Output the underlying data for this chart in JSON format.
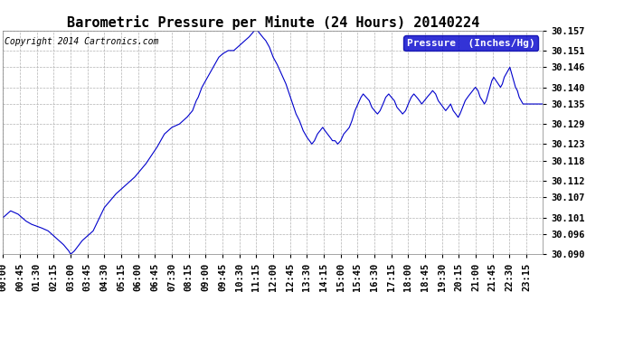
{
  "title": "Barometric Pressure per Minute (24 Hours) 20140224",
  "copyright_text": "Copyright 2014 Cartronics.com",
  "legend_label": "Pressure  (Inches/Hg)",
  "y_min": 30.09,
  "y_max": 30.157,
  "y_ticks": [
    30.09,
    30.096,
    30.101,
    30.107,
    30.112,
    30.118,
    30.123,
    30.129,
    30.135,
    30.14,
    30.146,
    30.151,
    30.157
  ],
  "line_color": "#0000cc",
  "background_color": "#ffffff",
  "grid_color": "#aaaaaa",
  "title_fontsize": 11,
  "tick_fontsize": 7.5,
  "copyright_fontsize": 7,
  "legend_fontsize": 8,
  "x_tick_labels": [
    "00:00",
    "00:45",
    "01:30",
    "02:15",
    "03:00",
    "03:45",
    "04:30",
    "05:15",
    "06:00",
    "06:45",
    "07:30",
    "08:15",
    "09:00",
    "09:45",
    "10:30",
    "11:15",
    "12:00",
    "12:45",
    "13:30",
    "14:15",
    "15:00",
    "15:45",
    "16:30",
    "17:15",
    "18:00",
    "18:45",
    "19:30",
    "20:15",
    "21:00",
    "21:45",
    "22:30",
    "23:15"
  ],
  "key_times_minutes": [
    0,
    45,
    90,
    135,
    180,
    225,
    270,
    315,
    360,
    405,
    450,
    495,
    540,
    585,
    630,
    675,
    720,
    765,
    810,
    855,
    900,
    945,
    990,
    1035,
    1080,
    1125,
    1170,
    1215,
    1260,
    1305,
    1350,
    1395
  ],
  "control_points": [
    [
      0,
      30.101
    ],
    [
      20,
      30.103
    ],
    [
      40,
      30.102
    ],
    [
      60,
      30.1
    ],
    [
      75,
      30.099
    ],
    [
      100,
      30.098
    ],
    [
      120,
      30.097
    ],
    [
      140,
      30.095
    ],
    [
      160,
      30.093
    ],
    [
      175,
      30.091
    ],
    [
      180,
      30.09
    ],
    [
      190,
      30.091
    ],
    [
      210,
      30.094
    ],
    [
      240,
      30.097
    ],
    [
      270,
      30.104
    ],
    [
      300,
      30.108
    ],
    [
      320,
      30.11
    ],
    [
      350,
      30.113
    ],
    [
      380,
      30.117
    ],
    [
      410,
      30.122
    ],
    [
      430,
      30.126
    ],
    [
      450,
      30.128
    ],
    [
      470,
      30.129
    ],
    [
      490,
      30.131
    ],
    [
      505,
      30.133
    ],
    [
      515,
      30.136
    ],
    [
      520,
      30.137
    ],
    [
      530,
      30.14
    ],
    [
      545,
      30.143
    ],
    [
      555,
      30.145
    ],
    [
      565,
      30.147
    ],
    [
      575,
      30.149
    ],
    [
      585,
      30.15
    ],
    [
      600,
      30.151
    ],
    [
      615,
      30.151
    ],
    [
      625,
      30.152
    ],
    [
      635,
      30.153
    ],
    [
      645,
      30.154
    ],
    [
      655,
      30.155
    ],
    [
      663,
      30.156
    ],
    [
      670,
      30.157
    ],
    [
      678,
      30.157
    ],
    [
      685,
      30.156
    ],
    [
      692,
      30.155
    ],
    [
      700,
      30.154
    ],
    [
      710,
      30.152
    ],
    [
      720,
      30.149
    ],
    [
      730,
      30.147
    ],
    [
      742,
      30.144
    ],
    [
      754,
      30.141
    ],
    [
      763,
      30.138
    ],
    [
      772,
      30.135
    ],
    [
      781,
      30.132
    ],
    [
      790,
      30.13
    ],
    [
      800,
      30.127
    ],
    [
      810,
      30.125
    ],
    [
      817,
      30.124
    ],
    [
      823,
      30.123
    ],
    [
      830,
      30.124
    ],
    [
      838,
      30.126
    ],
    [
      845,
      30.127
    ],
    [
      852,
      30.128
    ],
    [
      858,
      30.127
    ],
    [
      865,
      30.126
    ],
    [
      872,
      30.125
    ],
    [
      878,
      30.124
    ],
    [
      885,
      30.124
    ],
    [
      892,
      30.123
    ],
    [
      900,
      30.124
    ],
    [
      908,
      30.126
    ],
    [
      916,
      30.127
    ],
    [
      923,
      30.128
    ],
    [
      930,
      30.13
    ],
    [
      938,
      30.133
    ],
    [
      946,
      30.135
    ],
    [
      954,
      30.137
    ],
    [
      960,
      30.138
    ],
    [
      968,
      30.137
    ],
    [
      976,
      30.136
    ],
    [
      983,
      30.134
    ],
    [
      990,
      30.133
    ],
    [
      998,
      30.132
    ],
    [
      1005,
      30.133
    ],
    [
      1013,
      30.135
    ],
    [
      1020,
      30.137
    ],
    [
      1028,
      30.138
    ],
    [
      1035,
      30.137
    ],
    [
      1043,
      30.136
    ],
    [
      1050,
      30.134
    ],
    [
      1058,
      30.133
    ],
    [
      1065,
      30.132
    ],
    [
      1073,
      30.133
    ],
    [
      1080,
      30.135
    ],
    [
      1088,
      30.137
    ],
    [
      1095,
      30.138
    ],
    [
      1103,
      30.137
    ],
    [
      1110,
      30.136
    ],
    [
      1116,
      30.135
    ],
    [
      1123,
      30.136
    ],
    [
      1130,
      30.137
    ],
    [
      1138,
      30.138
    ],
    [
      1145,
      30.139
    ],
    [
      1153,
      30.138
    ],
    [
      1160,
      30.136
    ],
    [
      1167,
      30.135
    ],
    [
      1173,
      30.134
    ],
    [
      1180,
      30.133
    ],
    [
      1187,
      30.134
    ],
    [
      1193,
      30.135
    ],
    [
      1200,
      30.133
    ],
    [
      1207,
      30.132
    ],
    [
      1213,
      30.131
    ],
    [
      1218,
      30.132
    ],
    [
      1225,
      30.134
    ],
    [
      1232,
      30.136
    ],
    [
      1238,
      30.137
    ],
    [
      1245,
      30.138
    ],
    [
      1252,
      30.139
    ],
    [
      1259,
      30.14
    ],
    [
      1266,
      30.139
    ],
    [
      1272,
      30.137
    ],
    [
      1278,
      30.136
    ],
    [
      1283,
      30.135
    ],
    [
      1288,
      30.136
    ],
    [
      1293,
      30.138
    ],
    [
      1298,
      30.14
    ],
    [
      1303,
      30.142
    ],
    [
      1308,
      30.143
    ],
    [
      1314,
      30.142
    ],
    [
      1320,
      30.141
    ],
    [
      1326,
      30.14
    ],
    [
      1331,
      30.141
    ],
    [
      1336,
      30.143
    ],
    [
      1341,
      30.144
    ],
    [
      1346,
      30.145
    ],
    [
      1351,
      30.146
    ],
    [
      1356,
      30.144
    ],
    [
      1361,
      30.142
    ],
    [
      1366,
      30.14
    ],
    [
      1371,
      30.139
    ],
    [
      1376,
      30.137
    ],
    [
      1381,
      30.136
    ],
    [
      1386,
      30.135
    ],
    [
      1391,
      30.135
    ],
    [
      1395,
      30.135
    ],
    [
      1410,
      30.135
    ],
    [
      1439,
      30.135
    ]
  ]
}
